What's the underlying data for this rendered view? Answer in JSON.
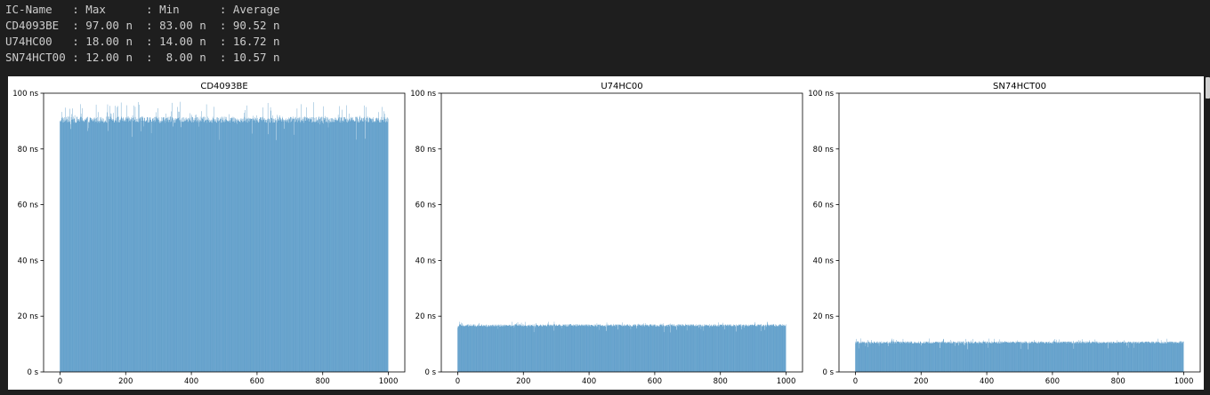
{
  "console": {
    "lines": [
      "IC-Name   : Max      : Min      : Average",
      "CD4093BE  : 97.00 n  : 83.00 n  : 90.52 n",
      "U74HC00   : 18.00 n  : 14.00 n  : 16.72 n",
      "SN74HCT00 : 12.00 n  :  8.00 n  : 10.57 n"
    ]
  },
  "colors": {
    "bar": "#1f77b4",
    "background": "#1e1e1e",
    "console_text": "#cccccc"
  },
  "chart_data": [
    {
      "type": "bar",
      "title": "CD4093BE",
      "xlabel": "",
      "ylabel": "",
      "x_range": [
        0,
        1000
      ],
      "ylim": [
        0,
        100
      ],
      "x_ticks": [
        "0",
        "200",
        "400",
        "600",
        "800",
        "1000"
      ],
      "y_ticks": [
        "0 s",
        "20 ns",
        "40 ns",
        "60 ns",
        "80 ns",
        "100 ns"
      ],
      "y_tick_values": [
        0,
        20,
        40,
        60,
        80,
        100
      ],
      "value_range": [
        83,
        97
      ],
      "typical_value": 90.5,
      "grid": false
    },
    {
      "type": "bar",
      "title": "U74HC00",
      "xlabel": "",
      "ylabel": "",
      "x_range": [
        0,
        1000
      ],
      "ylim": [
        0,
        100
      ],
      "x_ticks": [
        "0",
        "200",
        "400",
        "600",
        "800",
        "1000"
      ],
      "y_ticks": [
        "0 s",
        "20 ns",
        "40 ns",
        "60 ns",
        "80 ns",
        "100 ns"
      ],
      "y_tick_values": [
        0,
        20,
        40,
        60,
        80,
        100
      ],
      "value_range": [
        14,
        18
      ],
      "typical_value": 16.7,
      "grid": false
    },
    {
      "type": "bar",
      "title": "SN74HCT00",
      "xlabel": "",
      "ylabel": "",
      "x_range": [
        0,
        1000
      ],
      "ylim": [
        0,
        100
      ],
      "x_ticks": [
        "0",
        "200",
        "400",
        "600",
        "800",
        "1000"
      ],
      "y_ticks": [
        "0 s",
        "20 ns",
        "40 ns",
        "60 ns",
        "80 ns",
        "100 ns"
      ],
      "y_tick_values": [
        0,
        20,
        40,
        60,
        80,
        100
      ],
      "value_range": [
        8,
        12
      ],
      "typical_value": 10.6,
      "grid": false
    }
  ]
}
